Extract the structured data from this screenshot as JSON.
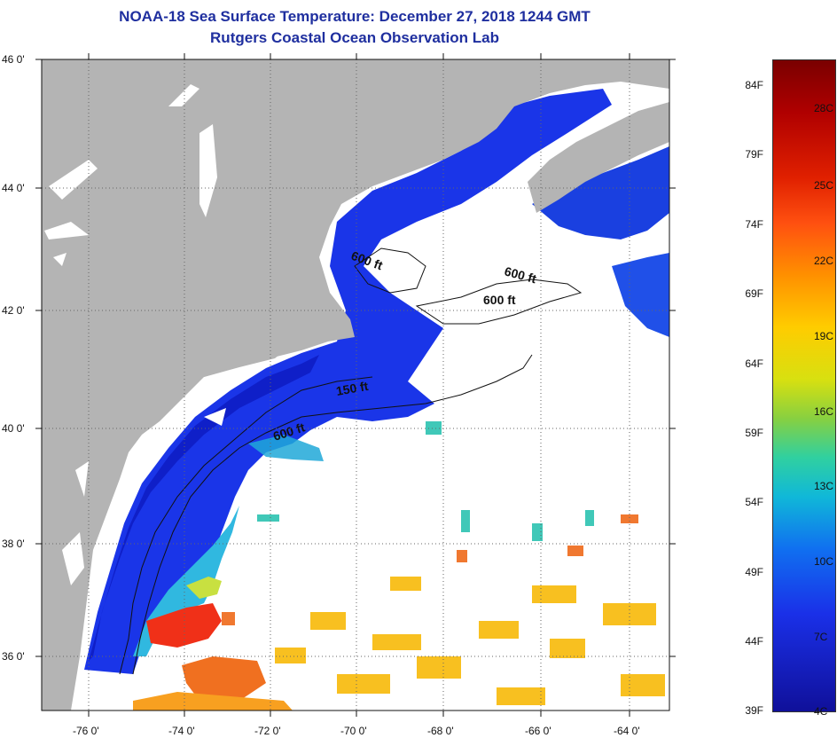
{
  "title_line1": "NOAA-18 Sea Surface Temperature:  December 27, 2018 1244 GMT",
  "title_line2": "Rutgers Coastal Ocean Observation Lab",
  "lat_labels": [
    "46 0'",
    "44 0'",
    "42 0'",
    "40 0'",
    "38 0'",
    "36 0'"
  ],
  "lon_labels": [
    "-76 0'",
    "-74 0'",
    "-72 0'",
    "-70 0'",
    "-68 0'",
    "-66 0'",
    "-64 0'"
  ],
  "depth_labels": [
    "600 ft",
    "600 ft",
    "600 ft",
    "150 ft",
    "600 ft"
  ],
  "colorbar": {
    "fahrenheit": [
      "84F",
      "79F",
      "74F",
      "69F",
      "64F",
      "59F",
      "54F",
      "49F",
      "44F",
      "39F"
    ],
    "celsius": [
      "28C",
      "25C",
      "22C",
      "19C",
      "16C",
      "13C",
      "10C",
      "7C",
      "4C"
    ]
  },
  "colors": {
    "land": "#b4b4b4",
    "cloud": "#ffffff",
    "title": "#1f2f9f",
    "cold_water": "#1a30e8",
    "warm_water": "#ff4020"
  }
}
